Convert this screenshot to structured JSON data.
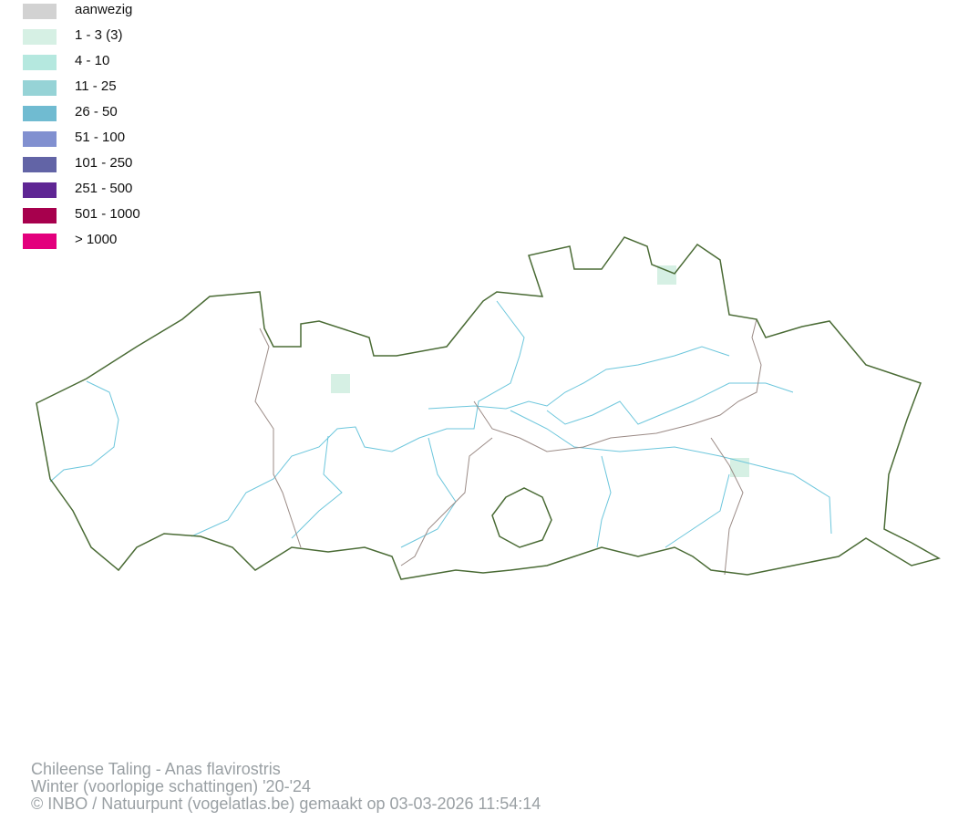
{
  "legend": {
    "items": [
      {
        "label": "aanwezig",
        "color": "#d2d2d2"
      },
      {
        "label": "1 - 3 (3)",
        "color": "#d6f0e4"
      },
      {
        "label": "4 - 10",
        "color": "#b5e8df"
      },
      {
        "label": "11 - 25",
        "color": "#96d3d6"
      },
      {
        "label": "26 - 50",
        "color": "#70bbd1"
      },
      {
        "label": "51 - 100",
        "color": "#8190d0"
      },
      {
        "label": "101 - 250",
        "color": "#6264a6"
      },
      {
        "label": "251 - 500",
        "color": "#5f2694"
      },
      {
        "label": "501 - 1000",
        "color": "#a7004d"
      },
      {
        "label": "> 1000",
        "color": "#e3007d"
      }
    ]
  },
  "map": {
    "border_color": "#4a6b35",
    "province_border_color": "#9b8b86",
    "river_color": "#6cc6dc",
    "observation_cells": 3,
    "observation_color": "#d6f0e4"
  },
  "footer": {
    "species": "Chileense Taling - Anas flavirostris",
    "period": "Winter (voorlopige schattingen) '20-'24",
    "credit": "© INBO / Natuurpunt (vogelatlas.be) gemaakt op 03-03-2026 11:54:14"
  }
}
